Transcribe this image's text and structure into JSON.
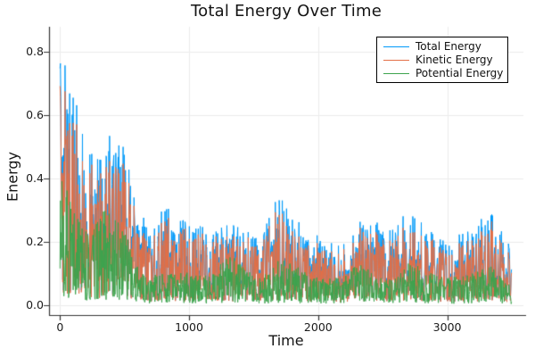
{
  "style": {
    "background": "#FFFFFF",
    "grid_color": "#ECECEC",
    "axis_color": "#363636",
    "tick_color": "#333333",
    "text_color": "#141414",
    "legend_border": "#000000"
  },
  "chart_data": {
    "type": "line",
    "title": "Total Energy Over Time",
    "xlabel": "Time",
    "ylabel": "Energy",
    "grid": true,
    "legend_position": "top-right",
    "xlim": [
      -85,
      3590
    ],
    "ylim": [
      -0.031,
      0.879
    ],
    "xticks": {
      "values": [
        0,
        1000,
        2000,
        3000
      ],
      "labels": [
        "0",
        "1000",
        "2000",
        "3000"
      ]
    },
    "yticks": {
      "values": [
        0.0,
        0.2,
        0.4,
        0.6,
        0.8
      ],
      "labels": [
        "0.0",
        "0.2",
        "0.4",
        "0.6",
        "0.8"
      ]
    },
    "x_range_of_data": [
      0,
      3500
    ],
    "envelope_t": [
      0,
      100,
      200,
      300,
      400,
      500,
      600,
      700,
      800,
      900,
      1000,
      1100,
      1200,
      1300,
      1400,
      1500,
      1600,
      1700,
      1800,
      1900,
      2000,
      2100,
      2200,
      2300,
      2400,
      2500,
      2600,
      2700,
      2800,
      2900,
      3000,
      3100,
      3200,
      3300,
      3400,
      3500
    ],
    "series": [
      {
        "name": "Total Energy",
        "color": "#009AFA",
        "description": "noisy oscillating series; values sweep between ~0 and the peak envelope below",
        "peak_envelope": [
          0.85,
          0.7,
          0.57,
          0.58,
          0.67,
          0.58,
          0.44,
          0.28,
          0.4,
          0.27,
          0.28,
          0.3,
          0.32,
          0.35,
          0.3,
          0.27,
          0.33,
          0.41,
          0.31,
          0.24,
          0.26,
          0.27,
          0.27,
          0.31,
          0.3,
          0.27,
          0.29,
          0.37,
          0.29,
          0.26,
          0.28,
          0.3,
          0.27,
          0.31,
          0.27,
          0.22
        ]
      },
      {
        "name": "Kinetic Energy",
        "color": "#E36F47",
        "description": "tracks just below Total Energy; dense band between ~0 and this envelope",
        "peak_envelope": [
          0.79,
          0.65,
          0.53,
          0.54,
          0.62,
          0.54,
          0.41,
          0.26,
          0.37,
          0.25,
          0.26,
          0.28,
          0.3,
          0.33,
          0.28,
          0.25,
          0.31,
          0.38,
          0.29,
          0.22,
          0.24,
          0.25,
          0.25,
          0.29,
          0.28,
          0.25,
          0.27,
          0.34,
          0.27,
          0.24,
          0.26,
          0.28,
          0.25,
          0.29,
          0.25,
          0.2
        ]
      },
      {
        "name": "Potential Energy",
        "color": "#3DA44E",
        "description": "lowest band; oscillates between ~0 and this envelope",
        "peak_envelope": [
          0.46,
          0.4,
          0.34,
          0.33,
          0.3,
          0.26,
          0.18,
          0.12,
          0.13,
          0.11,
          0.12,
          0.13,
          0.14,
          0.17,
          0.13,
          0.12,
          0.14,
          0.18,
          0.13,
          0.11,
          0.12,
          0.12,
          0.12,
          0.13,
          0.12,
          0.11,
          0.12,
          0.15,
          0.12,
          0.11,
          0.12,
          0.13,
          0.11,
          0.13,
          0.12,
          0.1
        ]
      }
    ]
  }
}
